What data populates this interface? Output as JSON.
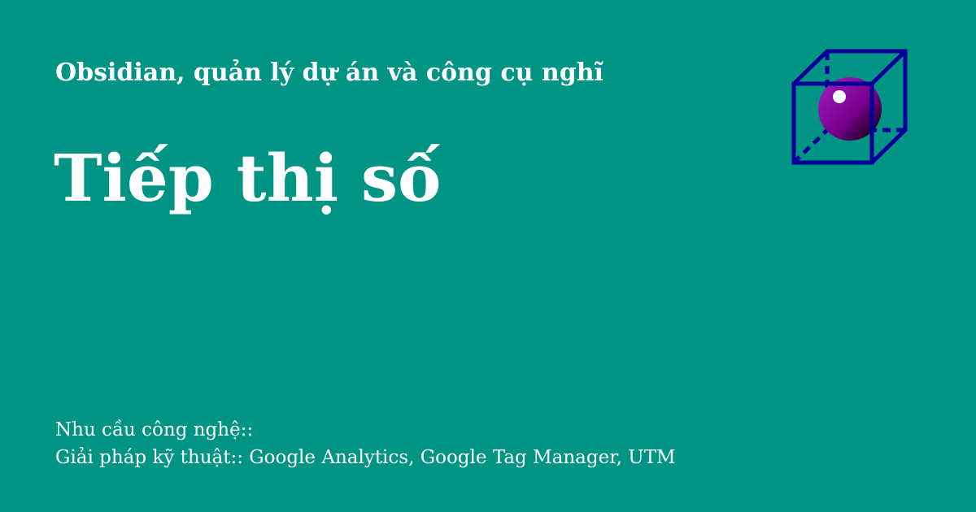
{
  "site_title": "Obsidian, quản lý dự án và công cụ nghĩ",
  "title": "Tiếp thị số",
  "description": [
    "Nhu cầu công nghệ::",
    "Giải pháp kỹ thuật:: Google Analytics, Google Tag Manager, UTM"
  ]
}
